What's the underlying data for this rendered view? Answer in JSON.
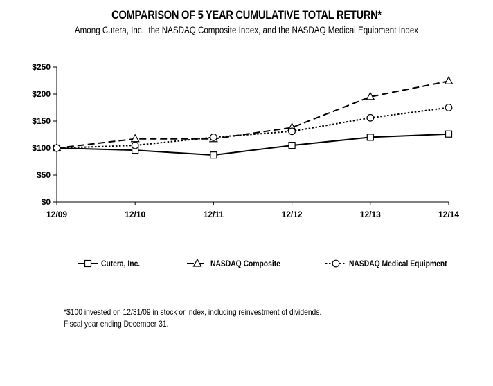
{
  "chart_data": {
    "type": "line",
    "title": "COMPARISON OF 5 YEAR CUMULATIVE TOTAL RETURN*",
    "subtitle": "Among Cutera, Inc., the NASDAQ Composite Index, and the NASDAQ Medical Equipment Index",
    "categories": [
      "12/09",
      "12/10",
      "12/11",
      "12/12",
      "12/13",
      "12/14"
    ],
    "ylim": [
      0,
      250
    ],
    "yticks": [
      0,
      50,
      100,
      150,
      200,
      250
    ],
    "ytick_labels": [
      "$0",
      "$50",
      "$100",
      "$150",
      "$200",
      "$250"
    ],
    "grid": false,
    "legend_position": "bottom",
    "series": [
      {
        "name": "Cutera, Inc.",
        "values": [
          100,
          96,
          87,
          105,
          120,
          126
        ],
        "line_style": "solid",
        "marker": "square"
      },
      {
        "name": "NASDAQ Composite",
        "values": [
          100,
          117,
          117,
          138,
          195,
          224
        ],
        "line_style": "dashed",
        "marker": "triangle"
      },
      {
        "name": "NASDAQ Medical Equipment",
        "values": [
          100,
          105,
          120,
          131,
          156,
          175
        ],
        "line_style": "dotted",
        "marker": "circle"
      }
    ]
  },
  "footnote": {
    "line1": "*$100 invested on 12/31/09 in stock or index, including reinvestment of dividends.",
    "line2": "Fiscal year ending December 31."
  },
  "colors": {
    "line": "#000000",
    "background": "#ffffff"
  }
}
